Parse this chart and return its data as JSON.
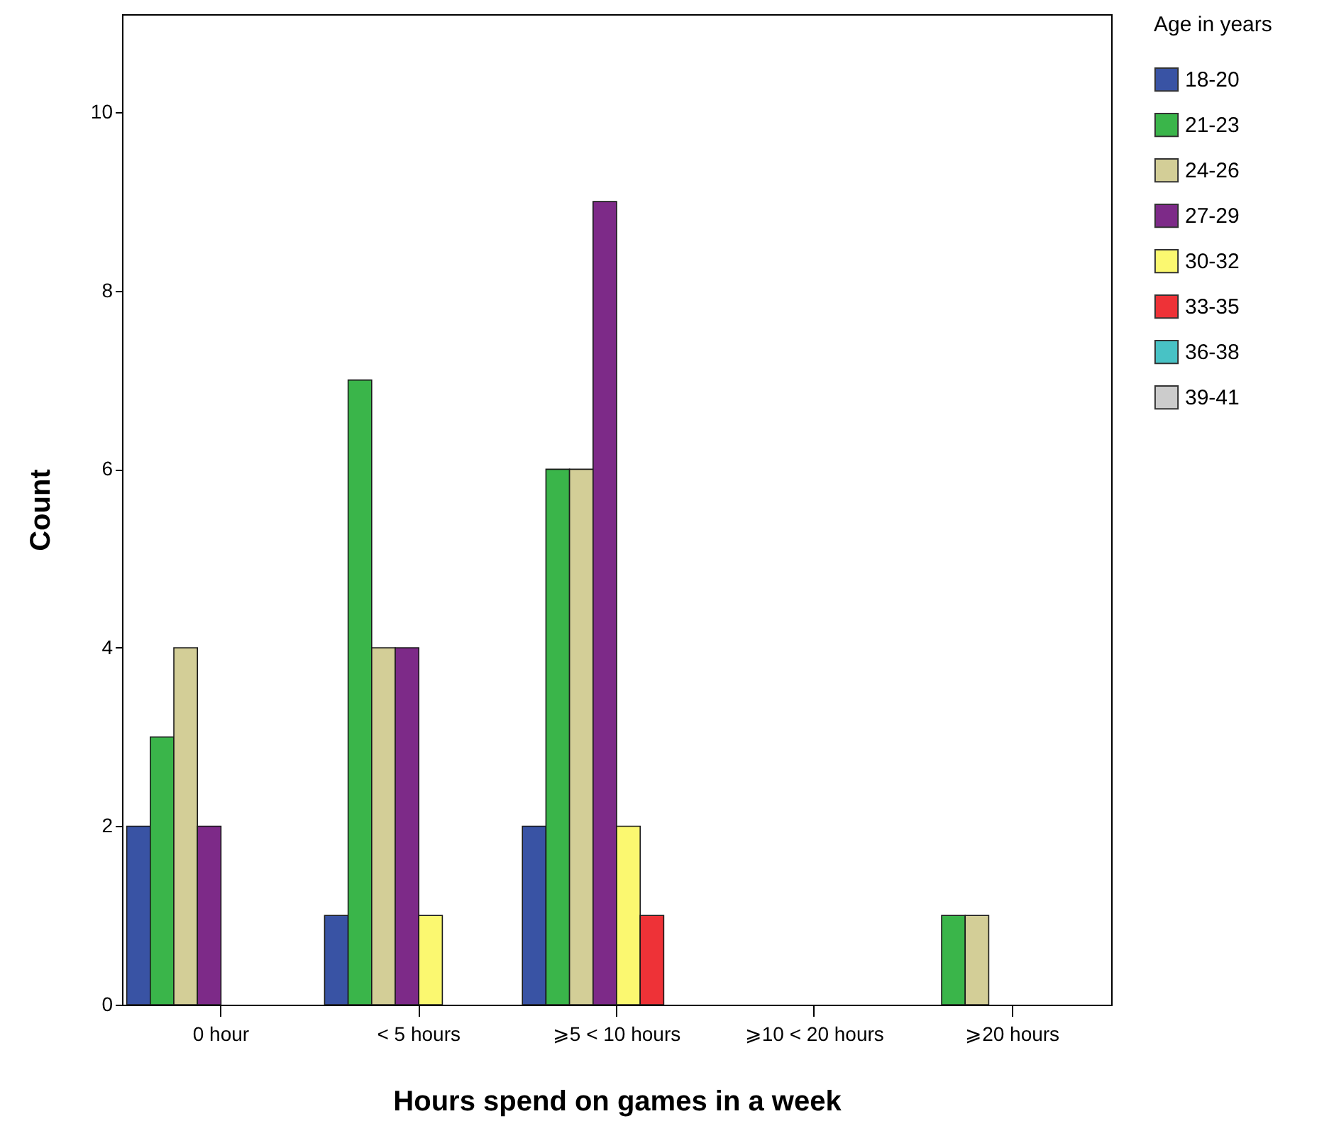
{
  "chart_data": {
    "type": "bar",
    "xlabel": "Hours spend on games in a week",
    "ylabel": "Count",
    "legend_title": "Age in years",
    "categories": [
      "0 hour",
      "< 5 hours",
      "⩾5 < 10 hours",
      "⩾10 < 20 hours",
      "⩾20 hours"
    ],
    "series": [
      {
        "name": "18-20",
        "color": "#3953a4",
        "values": [
          2,
          1,
          2,
          null,
          null
        ]
      },
      {
        "name": "21-23",
        "color": "#3ab54a",
        "values": [
          3,
          7,
          6,
          null,
          1
        ]
      },
      {
        "name": "24-26",
        "color": "#d3ce97",
        "values": [
          4,
          4,
          6,
          null,
          1
        ]
      },
      {
        "name": "27-29",
        "color": "#7d2a88",
        "values": [
          2,
          4,
          9,
          null,
          null
        ]
      },
      {
        "name": "30-32",
        "color": "#fbf870",
        "values": [
          null,
          1,
          2,
          null,
          null
        ]
      },
      {
        "name": "33-35",
        "color": "#ee3237",
        "values": [
          null,
          null,
          1,
          null,
          null
        ]
      },
      {
        "name": "36-38",
        "color": "#48c2c5",
        "values": [
          null,
          null,
          null,
          null,
          null
        ]
      },
      {
        "name": "39-41",
        "color": "#cccccc",
        "values": [
          null,
          null,
          null,
          null,
          null
        ]
      }
    ],
    "ylim": [
      0,
      11.1
    ],
    "yticks": [
      0,
      2,
      4,
      6,
      8,
      10
    ],
    "grid": false,
    "legend": "right"
  }
}
